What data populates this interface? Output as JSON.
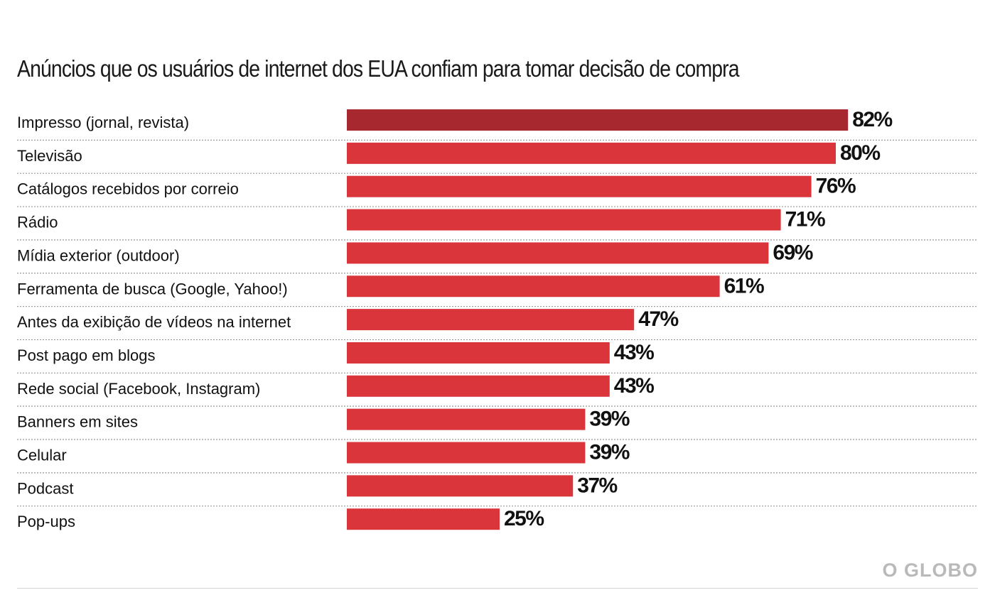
{
  "chart_data": {
    "type": "bar",
    "orientation": "horizontal",
    "title": "Anúncios que os usuários de internet dos EUA confiam para tomar decisão de compra",
    "categories": [
      "Impresso (jornal, revista)",
      "Televisão",
      "Catálogos recebidos por correio",
      "Rádio",
      "Mídia exterior (outdoor)",
      "Ferramenta de busca (Google, Yahoo!)",
      "Antes da exibição de vídeos na internet",
      "Post pago em blogs",
      "Rede social (Facebook, Instagram)",
      "Banners em sites",
      "Celular",
      "Podcast",
      "Pop-ups"
    ],
    "values": [
      82,
      80,
      76,
      71,
      69,
      61,
      47,
      43,
      43,
      39,
      39,
      37,
      25
    ],
    "value_labels": [
      "82%",
      "80%",
      "76%",
      "71%",
      "69%",
      "61%",
      "47%",
      "43%",
      "43%",
      "39%",
      "39%",
      "37%",
      "25%"
    ],
    "unit": "%",
    "xlim": [
      0,
      100
    ],
    "highlight_index": 0,
    "colors": {
      "bar": "#d9353b",
      "highlight": "#a8282f"
    }
  },
  "footer": {
    "brand": "O GLOBO"
  }
}
